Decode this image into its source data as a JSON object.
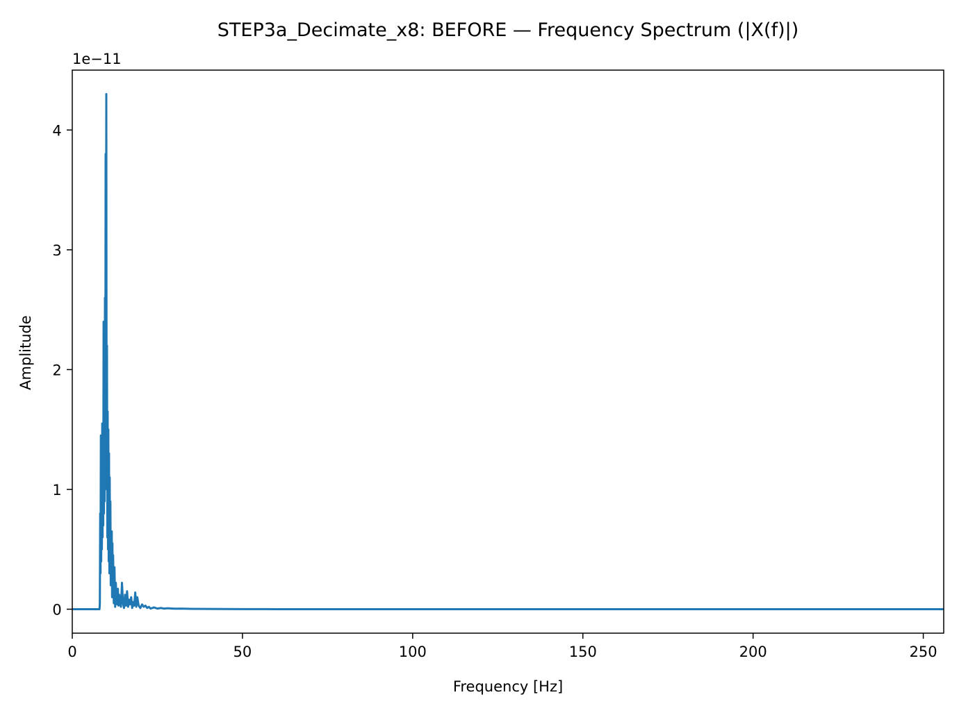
{
  "chart_data": {
    "type": "line",
    "title": "STEP3a_Decimate_x8: BEFORE — Frequency Spectrum (|X(f)|)",
    "xlabel": "Frequency [Hz]",
    "ylabel": "Amplitude",
    "y_offset_text": "1e−11",
    "xlim": [
      0,
      256
    ],
    "ylim": [
      -0.2,
      4.5
    ],
    "x_ticks": [
      0,
      50,
      100,
      150,
      200,
      250
    ],
    "x_tick_labels": [
      "0",
      "50",
      "100",
      "150",
      "200",
      "250"
    ],
    "y_ticks": [
      0,
      1,
      2,
      3,
      4
    ],
    "y_tick_labels": [
      "0",
      "1",
      "2",
      "3",
      "4"
    ],
    "grid": false,
    "legend": "none",
    "series": [
      {
        "color": "#1f77b4",
        "x": [
          0,
          8.0,
          8.1,
          8.2,
          8.3,
          8.4,
          8.5,
          8.6,
          8.7,
          8.8,
          8.9,
          9.0,
          9.1,
          9.2,
          9.3,
          9.4,
          9.5,
          9.6,
          9.7,
          9.8,
          9.9,
          10.0,
          10.1,
          10.2,
          10.3,
          10.4,
          10.5,
          10.6,
          10.7,
          10.8,
          10.9,
          11.0,
          11.1,
          11.2,
          11.3,
          11.4,
          11.5,
          11.6,
          11.7,
          11.8,
          11.9,
          12.0,
          12.2,
          12.4,
          12.6,
          12.8,
          13.0,
          13.2,
          13.4,
          13.6,
          13.8,
          14.0,
          14.3,
          14.6,
          14.9,
          15.2,
          15.5,
          15.8,
          16.1,
          16.4,
          16.7,
          17.0,
          17.3,
          17.6,
          17.9,
          18.2,
          18.5,
          18.8,
          19.1,
          19.5,
          20.0,
          20.5,
          21.0,
          21.5,
          22.0,
          22.5,
          23.0,
          24.0,
          25.0,
          26.0,
          27.0,
          28.0,
          30.0,
          32.0,
          35.0,
          40.0,
          50.0,
          60.0,
          80.0,
          256
        ],
        "y": [
          0,
          0,
          0.05,
          0.8,
          0.3,
          1.45,
          0.4,
          1.3,
          0.5,
          1.55,
          0.6,
          1.4,
          0.7,
          2.4,
          0.8,
          2.0,
          0.9,
          2.6,
          1.2,
          3.8,
          1.5,
          4.3,
          1.0,
          2.2,
          0.6,
          1.65,
          0.5,
          1.5,
          0.4,
          1.3,
          0.3,
          1.1,
          0.35,
          0.9,
          0.2,
          0.6,
          0.25,
          0.65,
          0.1,
          0.55,
          0.15,
          0.45,
          0.05,
          0.35,
          0.02,
          0.22,
          0.08,
          0.04,
          0.17,
          0.03,
          0.12,
          0.06,
          0.02,
          0.22,
          0.05,
          0.01,
          0.12,
          0.03,
          0.15,
          0.02,
          0.08,
          0.04,
          0.1,
          0.01,
          0.06,
          0.03,
          0.14,
          0.02,
          0.1,
          0.03,
          0.01,
          0.04,
          0.02,
          0.03,
          0.01,
          0.02,
          0.005,
          0.015,
          0.005,
          0.01,
          0.005,
          0.008,
          0.004,
          0.005,
          0.003,
          0.002,
          0.001,
          0.0,
          0.0,
          0.0
        ]
      }
    ]
  }
}
